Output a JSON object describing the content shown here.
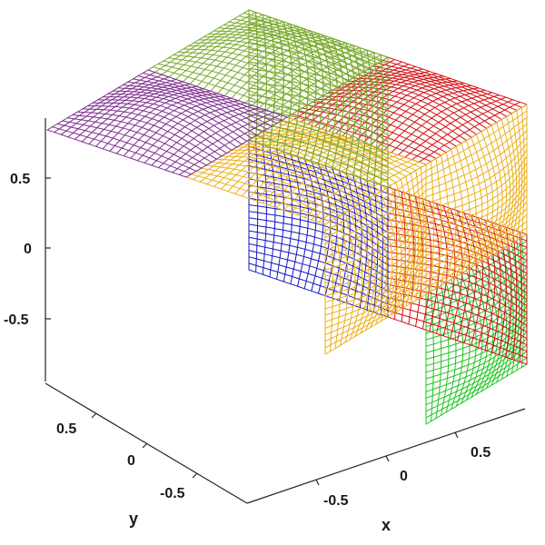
{
  "chart_data": {
    "type": "surface-mesh",
    "title": "",
    "xlabel": "x",
    "ylabel": "y",
    "zlabel": "",
    "xlim": [
      -1,
      1
    ],
    "ylim": [
      -1,
      1
    ],
    "zlim": [
      -1,
      1
    ],
    "x_ticks": [
      {
        "value": -0.5,
        "label": "-0.5"
      },
      {
        "value": 0,
        "label": "0"
      },
      {
        "value": 0.5,
        "label": "0.5"
      }
    ],
    "y_ticks": [
      {
        "value": -0.5,
        "label": "-0.5"
      },
      {
        "value": 0,
        "label": "0"
      },
      {
        "value": 0.5,
        "label": "0.5"
      }
    ],
    "z_ticks": [
      {
        "value": -0.5,
        "label": "-0.5"
      },
      {
        "value": 0,
        "label": "0"
      },
      {
        "value": 0.5,
        "label": "0.5"
      }
    ],
    "grid": false,
    "legend": "none",
    "view": "3-D isometric, viewed from x > 0, y < 0, z > 0",
    "patches": [
      {
        "face": "x = 1",
        "x_range": [
          0,
          1
        ],
        "y_range": [
          -1,
          0
        ],
        "z_range": [
          -1,
          0
        ],
        "color": "#1fc41f"
      },
      {
        "face": "y = -1",
        "x_range": [
          0,
          1
        ],
        "y_range": [
          -1,
          0
        ],
        "z_range": [
          -1,
          0
        ],
        "color": "#d40f14"
      },
      {
        "face": "z = 1",
        "x_range": [
          0,
          1
        ],
        "y_range": [
          -1,
          0
        ],
        "z_range": [
          -1,
          0
        ],
        "color": "#d40f14"
      },
      {
        "face": "y = -1",
        "x_range": [
          -1,
          0
        ],
        "y_range": [
          -1,
          0
        ],
        "z_range": [
          -1,
          0
        ],
        "color": "#1616c8"
      },
      {
        "face": "x = 1",
        "x_range": [
          0,
          1
        ],
        "y_range": [
          -1,
          0
        ],
        "z_range": [
          0,
          1
        ],
        "color": "#ecb01a"
      },
      {
        "face": "x = 1",
        "x_range": [
          0,
          1
        ],
        "y_range": [
          0,
          1
        ],
        "z_range": [
          0,
          1
        ],
        "color": "#ecb01a"
      },
      {
        "face": "z = 1",
        "x_range": [
          0,
          1
        ],
        "y_range": [
          0,
          1
        ],
        "z_range": [
          0,
          1
        ],
        "color": "#ecb01a"
      },
      {
        "face": "y = -1",
        "x_range": [
          -1,
          0
        ],
        "y_range": [
          -1,
          0
        ],
        "z_range": [
          0,
          1
        ],
        "color": "#7aaa2c"
      },
      {
        "face": "y = -1",
        "x_range": [
          -1,
          0
        ],
        "y_range": [
          0,
          1
        ],
        "z_range": [
          0,
          1
        ],
        "color": "#7aaa2c"
      },
      {
        "face": "z = 1",
        "x_range": [
          -1,
          0
        ],
        "y_range": [
          -1,
          0
        ],
        "z_range": [
          0,
          1
        ],
        "color": "#7aaa2c"
      },
      {
        "face": "z = 1",
        "x_range": [
          -1,
          0
        ],
        "y_range": [
          0,
          1
        ],
        "z_range": [
          0,
          1
        ],
        "color": "#7e2f8e"
      }
    ]
  }
}
